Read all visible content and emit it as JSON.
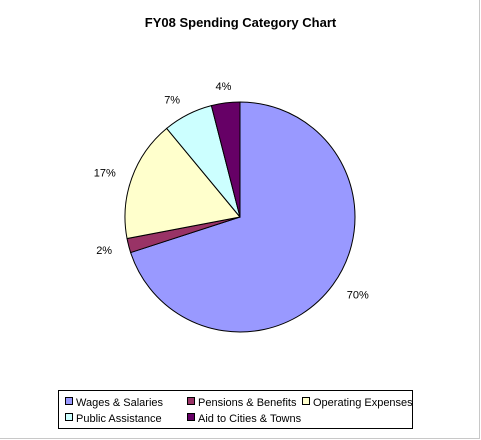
{
  "chart_data": {
    "type": "pie",
    "title": "FY08 Spending Category Chart",
    "slices": [
      {
        "name": "Wages & Salaries",
        "value": 70,
        "label": "70%",
        "color": "#9999ff"
      },
      {
        "name": "Pensions & Benefits",
        "value": 2,
        "label": "2%",
        "color": "#993366"
      },
      {
        "name": "Operating Expenses",
        "value": 17,
        "label": "17%",
        "color": "#ffffcc"
      },
      {
        "name": "Public Assistance",
        "value": 7,
        "label": "7%",
        "color": "#ccffff"
      },
      {
        "name": "Aid to Cities & Towns",
        "value": 4,
        "label": "4%",
        "color": "#660066"
      }
    ],
    "start_angle": "12 o'clock",
    "direction": "clockwise",
    "legend_position": "bottom"
  }
}
